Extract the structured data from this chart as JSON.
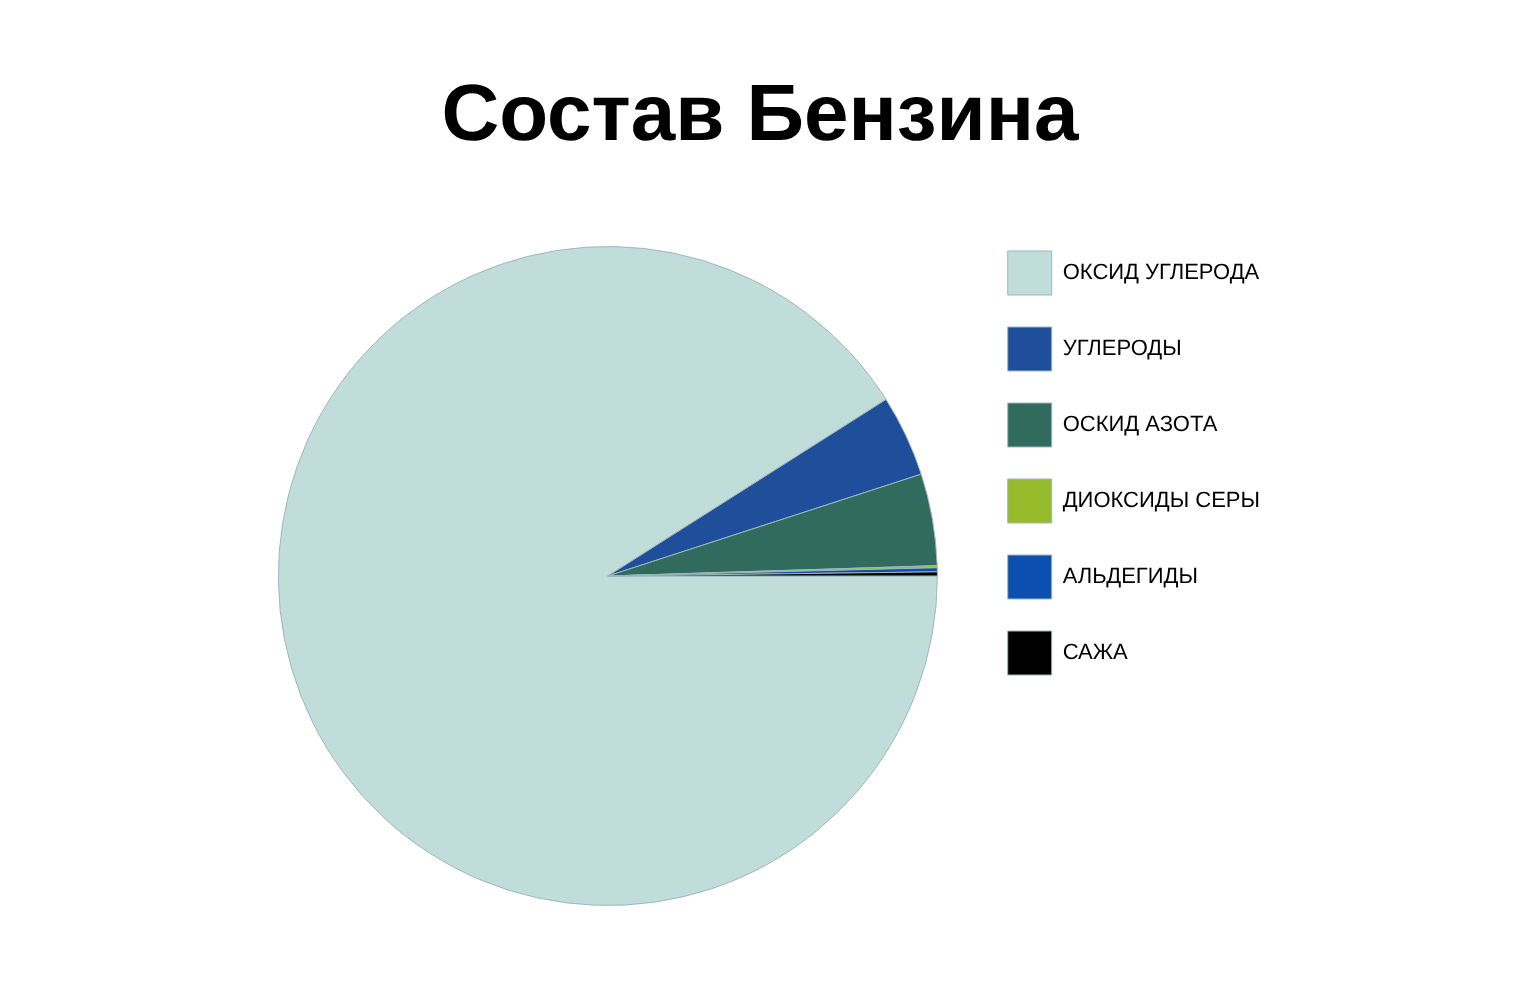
{
  "chart_data": {
    "type": "pie",
    "title": "Состав Бензина",
    "categories": [
      "ОКСИД УГЛЕРОДА",
      "УГЛЕРОДЫ",
      "ОСКИД АЗОТА",
      "ДИОКСИДЫ СЕРЫ",
      "АЛЬДЕГИДЫ",
      "САЖА"
    ],
    "values": [
      91,
      4,
      4.5,
      0.1,
      0.2,
      0.2
    ],
    "colors": [
      "#c0ddda",
      "#1f4e9a",
      "#316b5e",
      "#95bb2b",
      "#0c4fb0",
      "#000000"
    ],
    "legend": "right"
  }
}
